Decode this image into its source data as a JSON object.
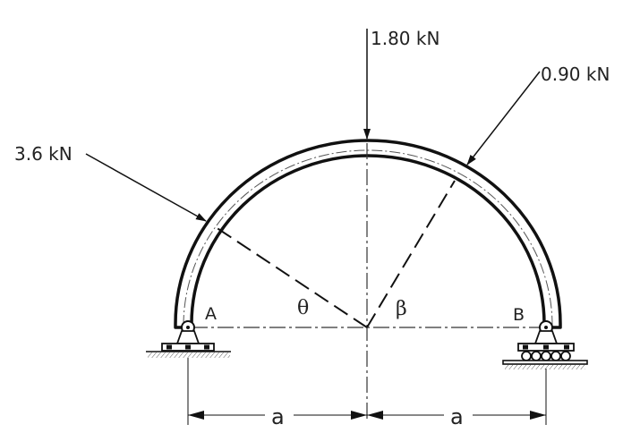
{
  "loads": {
    "top": "1.80 kN",
    "right": "0.90 kN",
    "left": "3.6 kN"
  },
  "supports": {
    "left": "A",
    "right": "B"
  },
  "angles": {
    "left": "θ",
    "right": "β"
  },
  "dimensions": {
    "left": "a",
    "right": "a"
  }
}
